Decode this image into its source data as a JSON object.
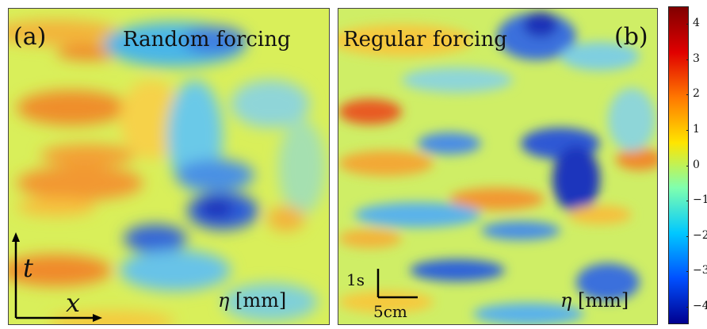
{
  "panels": {
    "a": {
      "tag": "(a)",
      "title": "Random forcing",
      "field_symbol": "η",
      "field_unit": "[mm]"
    },
    "b": {
      "tag": "(b)",
      "title": "Regular forcing",
      "field_symbol": "η",
      "field_unit": "[mm]"
    }
  },
  "axes": {
    "time_symbol": "t",
    "space_symbol": "x"
  },
  "scale_bar": {
    "time": "1s",
    "space": "5cm"
  },
  "colorbar": {
    "ticks": [
      "4",
      "3",
      "2",
      "1",
      "0",
      "−1",
      "−2",
      "−3",
      "−4"
    ],
    "range": [
      -4.5,
      4.5
    ],
    "colors": [
      "#00008f",
      "#0050ff",
      "#00c8ff",
      "#7fffaf",
      "#ffe500",
      "#ff7800",
      "#e00000",
      "#800000"
    ]
  }
}
